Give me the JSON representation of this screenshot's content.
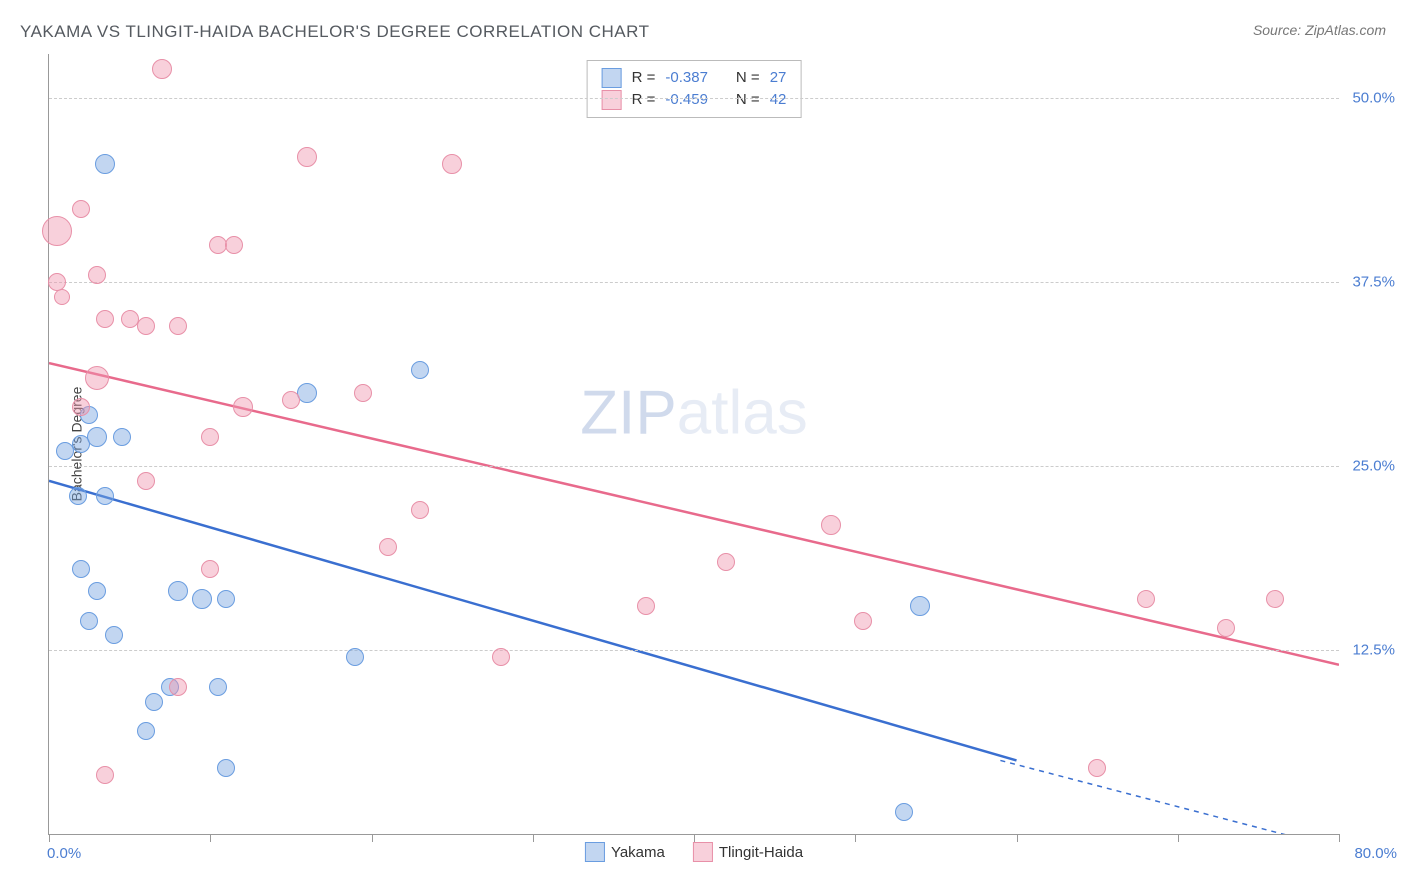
{
  "title": "YAKAMA VS TLINGIT-HAIDA BACHELOR'S DEGREE CORRELATION CHART",
  "source": "Source: ZipAtlas.com",
  "watermark_bold": "ZIP",
  "watermark_light": "atlas",
  "ylabel": "Bachelor's Degree",
  "x_min_label": "0.0%",
  "x_max_label": "80.0%",
  "chart": {
    "type": "scatter",
    "x_domain": [
      0,
      80
    ],
    "y_domain": [
      0,
      53
    ],
    "x_ticks": [
      0,
      10,
      20,
      30,
      40,
      50,
      60,
      70,
      80
    ],
    "y_gridlines": [
      {
        "value": 12.5,
        "label": "12.5%"
      },
      {
        "value": 25.0,
        "label": "25.0%"
      },
      {
        "value": 37.5,
        "label": "37.5%"
      },
      {
        "value": 50.0,
        "label": "50.0%"
      }
    ],
    "background_color": "#ffffff",
    "grid_color": "#cccccc",
    "series": [
      {
        "name": "Yakama",
        "color_fill": "rgba(120,165,225,0.45)",
        "color_stroke": "#6a9de0",
        "trend_color": "#3a6fd0",
        "r_label": "R =",
        "r_value": "-0.387",
        "n_label": "N =",
        "n_value": "27",
        "trend": {
          "x1": 0,
          "y1": 24.0,
          "x2": 60,
          "y2": 5.0,
          "dash_from_x": 59,
          "dash_to_x": 80,
          "dash_to_y": -1
        },
        "points": [
          {
            "x": 3.5,
            "y": 45.5,
            "r": 9
          },
          {
            "x": 2.5,
            "y": 28.5,
            "r": 8
          },
          {
            "x": 2,
            "y": 26.5,
            "r": 8
          },
          {
            "x": 3,
            "y": 27,
            "r": 9
          },
          {
            "x": 1,
            "y": 26,
            "r": 8
          },
          {
            "x": 1.8,
            "y": 23,
            "r": 8
          },
          {
            "x": 3.5,
            "y": 23,
            "r": 8
          },
          {
            "x": 4.5,
            "y": 27,
            "r": 8
          },
          {
            "x": 2,
            "y": 18,
            "r": 8
          },
          {
            "x": 2.5,
            "y": 14.5,
            "r": 8
          },
          {
            "x": 3,
            "y": 16.5,
            "r": 8
          },
          {
            "x": 4,
            "y": 13.5,
            "r": 8
          },
          {
            "x": 6.5,
            "y": 9,
            "r": 8
          },
          {
            "x": 6,
            "y": 7,
            "r": 8
          },
          {
            "x": 7.5,
            "y": 10,
            "r": 8
          },
          {
            "x": 8,
            "y": 16.5,
            "r": 9
          },
          {
            "x": 9.5,
            "y": 16,
            "r": 9
          },
          {
            "x": 11,
            "y": 16,
            "r": 8
          },
          {
            "x": 10.5,
            "y": 10,
            "r": 8
          },
          {
            "x": 16,
            "y": 30,
            "r": 9
          },
          {
            "x": 19,
            "y": 12,
            "r": 8
          },
          {
            "x": 23,
            "y": 31.5,
            "r": 8
          },
          {
            "x": 54,
            "y": 15.5,
            "r": 9
          },
          {
            "x": 53,
            "y": 1.5,
            "r": 8
          },
          {
            "x": 11,
            "y": 4.5,
            "r": 8
          }
        ]
      },
      {
        "name": "Tlingit-Haida",
        "color_fill": "rgba(240,150,175,0.45)",
        "color_stroke": "#e890a8",
        "trend_color": "#e86a8c",
        "r_label": "R =",
        "r_value": "-0.459",
        "n_label": "N =",
        "n_value": "42",
        "trend": {
          "x1": 0,
          "y1": 32.0,
          "x2": 80,
          "y2": 11.5
        },
        "points": [
          {
            "x": 0.5,
            "y": 41,
            "r": 14
          },
          {
            "x": 0.5,
            "y": 37.5,
            "r": 8
          },
          {
            "x": 0.8,
            "y": 36.5,
            "r": 7
          },
          {
            "x": 3,
            "y": 38,
            "r": 8
          },
          {
            "x": 2,
            "y": 42.5,
            "r": 8
          },
          {
            "x": 3.5,
            "y": 35,
            "r": 8
          },
          {
            "x": 5,
            "y": 35,
            "r": 8
          },
          {
            "x": 6,
            "y": 34.5,
            "r": 8
          },
          {
            "x": 8,
            "y": 34.5,
            "r": 8
          },
          {
            "x": 7,
            "y": 52,
            "r": 9
          },
          {
            "x": 10.5,
            "y": 40,
            "r": 8
          },
          {
            "x": 11.5,
            "y": 40,
            "r": 8
          },
          {
            "x": 12,
            "y": 29,
            "r": 9
          },
          {
            "x": 10,
            "y": 27,
            "r": 8
          },
          {
            "x": 2,
            "y": 29,
            "r": 8
          },
          {
            "x": 3,
            "y": 31,
            "r": 11
          },
          {
            "x": 6,
            "y": 24,
            "r": 8
          },
          {
            "x": 3.5,
            "y": 4,
            "r": 8
          },
          {
            "x": 8,
            "y": 10,
            "r": 8
          },
          {
            "x": 10,
            "y": 18,
            "r": 8
          },
          {
            "x": 15,
            "y": 29.5,
            "r": 8
          },
          {
            "x": 16,
            "y": 46,
            "r": 9
          },
          {
            "x": 21,
            "y": 19.5,
            "r": 8
          },
          {
            "x": 23,
            "y": 22,
            "r": 8
          },
          {
            "x": 25,
            "y": 45.5,
            "r": 9
          },
          {
            "x": 28,
            "y": 12,
            "r": 8
          },
          {
            "x": 37,
            "y": 15.5,
            "r": 8
          },
          {
            "x": 42,
            "y": 18.5,
            "r": 8
          },
          {
            "x": 48.5,
            "y": 21,
            "r": 9
          },
          {
            "x": 50.5,
            "y": 14.5,
            "r": 8
          },
          {
            "x": 65,
            "y": 4.5,
            "r": 8
          },
          {
            "x": 68,
            "y": 16,
            "r": 8
          },
          {
            "x": 73,
            "y": 14,
            "r": 8
          },
          {
            "x": 76,
            "y": 16,
            "r": 8
          },
          {
            "x": 19.5,
            "y": 30,
            "r": 8
          }
        ]
      }
    ]
  }
}
